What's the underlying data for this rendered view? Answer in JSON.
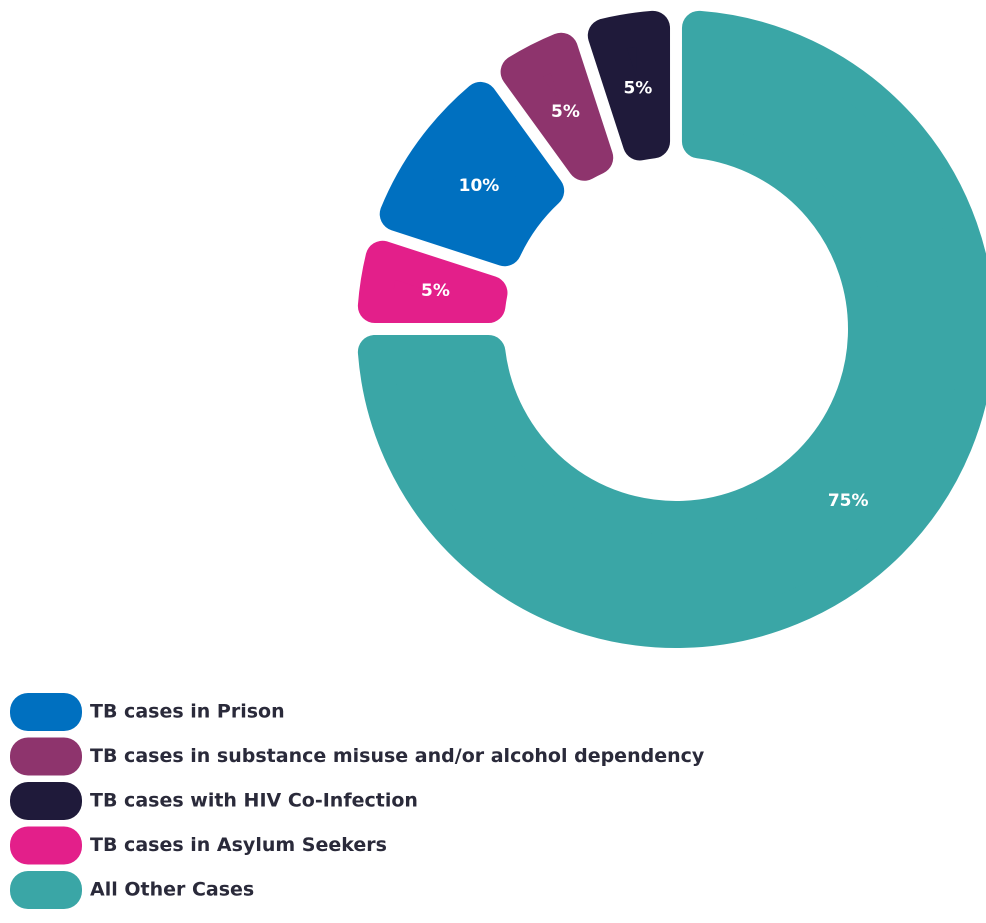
{
  "chart_data": {
    "type": "donut",
    "categories": [
      "TB cases in Prison",
      "TB cases in substance misuse and/or alcohol dependency",
      "TB cases with HIV Co-Infection",
      "TB cases in Asylum Seekers",
      "All Other Cases"
    ],
    "values": [
      10,
      5,
      5,
      5,
      75
    ],
    "value_labels": [
      "10%",
      "5%",
      "5%",
      "5%",
      "75%"
    ],
    "colors": [
      "#0070c0",
      "#8e346d",
      "#1f1a3a",
      "#e31f8a",
      "#3aa6a6"
    ],
    "legend": "bottom-left"
  }
}
